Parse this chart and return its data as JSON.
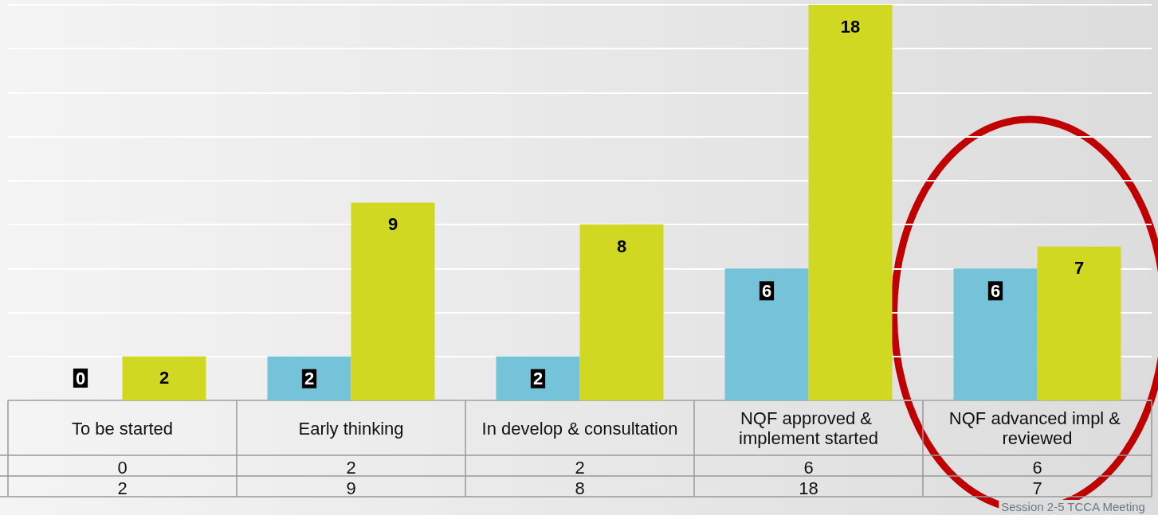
{
  "chart_data": {
    "type": "bar",
    "categories": [
      "To be started",
      "Early thinking",
      "In develop & consultation",
      "NQF approved & implement started",
      "NQF advanced impl & reviewed"
    ],
    "series": [
      {
        "color": "#74c3d9",
        "values": [
          0,
          2,
          2,
          6,
          6
        ],
        "value_labels": [
          "0",
          "2",
          "2",
          "6",
          "6"
        ]
      },
      {
        "color": "#d1d821",
        "values": [
          2,
          9,
          8,
          18,
          7
        ],
        "value_labels": [
          "2",
          "9",
          "8",
          "18",
          "7"
        ]
      }
    ],
    "ylim": [
      0,
      18
    ],
    "yticks": [
      {
        "value": 0,
        "label": null
      },
      {
        "value": 2,
        "label": null
      },
      {
        "value": 4,
        "label": null
      },
      {
        "value": 6,
        "label": null
      },
      {
        "value": 8,
        "label": null
      },
      {
        "value": 10,
        "label": null
      },
      {
        "value": 12,
        "label": null
      },
      {
        "value": 14,
        "label": null
      },
      {
        "value": 16,
        "label": null
      },
      {
        "value": 18,
        "label": null
      }
    ],
    "grid": true,
    "tick_labels": "x",
    "data_labels": true,
    "annotations": [
      "Session 2-5 TCCA Meeting"
    ]
  }
}
